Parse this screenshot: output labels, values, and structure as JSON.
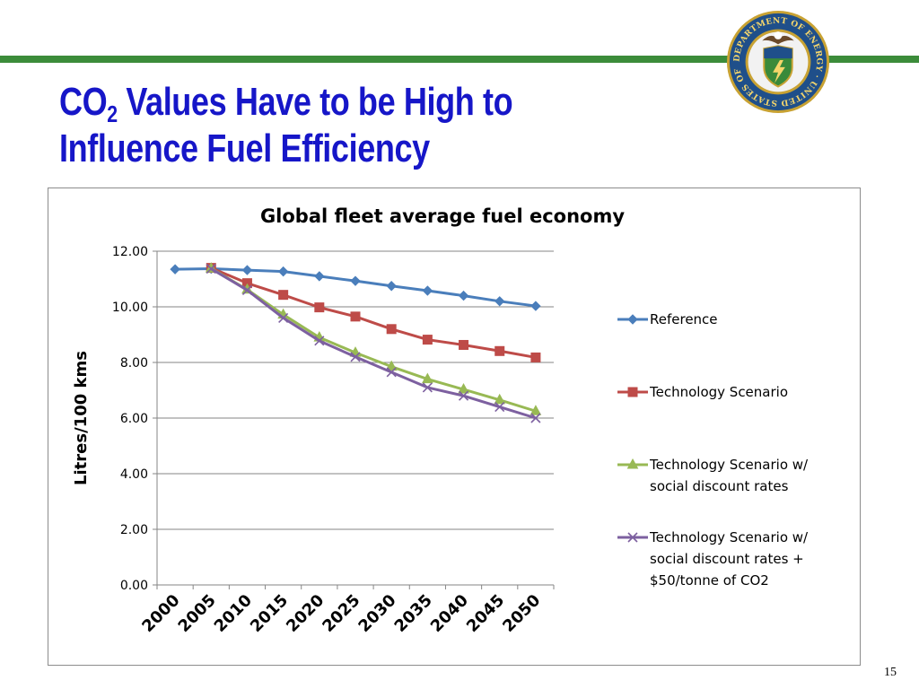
{
  "slide": {
    "title_line1_pre": "CO",
    "title_line1_sub": "2",
    "title_line1_post": " Values Have to be High to",
    "title_line2": "Influence Fuel Efficiency",
    "page_number": "15",
    "accent_color": "#1616c8",
    "rule_color": "#3c8c3a",
    "logo": "department-of-energy-seal",
    "logo_text": "DEPARTMENT OF ENERGY · UNITED STATES OF AMERICA"
  },
  "chart_data": {
    "type": "line",
    "title": "Global fleet average fuel economy",
    "xlabel": "",
    "ylabel": "Litres/100 kms",
    "ylim": [
      0,
      12
    ],
    "yticks": [
      "0.00",
      "2.00",
      "4.00",
      "6.00",
      "8.00",
      "10.00",
      "12.00"
    ],
    "grid": "horizontal",
    "legend_position": "right",
    "categories": [
      "2000",
      "2005",
      "2010",
      "2015",
      "2020",
      "2025",
      "2030",
      "2035",
      "2040",
      "2045",
      "2050"
    ],
    "series": [
      {
        "name": "Reference",
        "color": "#4a7ebb",
        "marker": "diamond",
        "values": [
          11.35,
          11.37,
          11.32,
          11.27,
          11.1,
          10.93,
          10.75,
          10.58,
          10.4,
          10.2,
          10.03
        ]
      },
      {
        "name": "Technology Scenario",
        "color": "#be4b48",
        "marker": "square",
        "values": [
          null,
          11.4,
          10.85,
          10.43,
          9.98,
          9.65,
          9.2,
          8.82,
          8.63,
          8.41,
          8.18
        ]
      },
      {
        "name": "Technology Scenario w/ social discount rates",
        "name_lines": [
          "Technology Scenario w/",
          "social discount rates"
        ],
        "color": "#98b954",
        "marker": "triangle",
        "values": [
          null,
          11.38,
          10.62,
          9.72,
          8.9,
          8.35,
          7.85,
          7.4,
          7.03,
          6.65,
          6.25
        ]
      },
      {
        "name": "Technology Scenario w/ social discount rates + $50/tonne of CO2",
        "name_lines": [
          "Technology Scenario w/",
          "social discount rates +",
          "$50/tonne of CO2"
        ],
        "color": "#7d60a0",
        "marker": "x",
        "values": [
          null,
          11.37,
          10.6,
          9.6,
          8.78,
          8.2,
          7.65,
          7.1,
          6.8,
          6.4,
          6.0
        ]
      }
    ]
  }
}
